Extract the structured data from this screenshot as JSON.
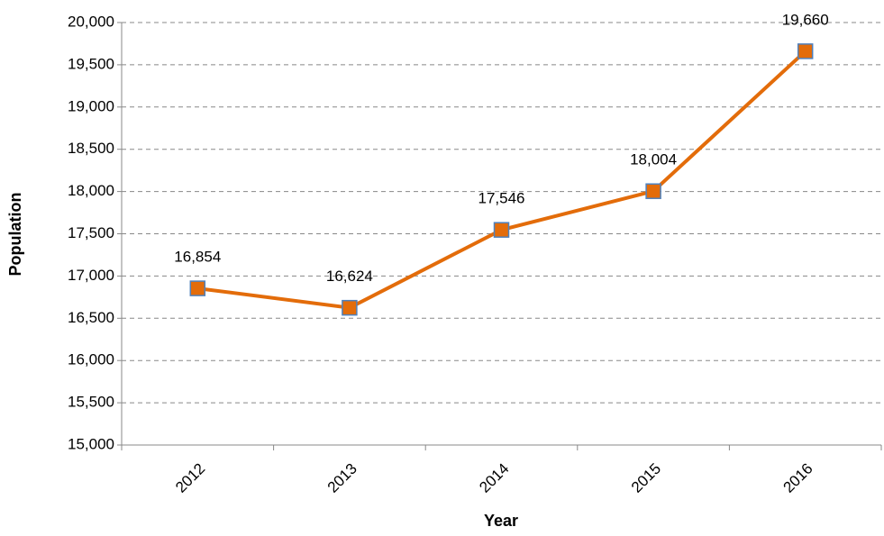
{
  "chart_data": {
    "type": "line",
    "x_label": "Year",
    "y_label": "Population",
    "categories": [
      "2012",
      "2013",
      "2014",
      "2015",
      "2016"
    ],
    "values": [
      16854,
      16624,
      17546,
      18004,
      19660
    ],
    "value_labels": [
      "16,854",
      "16,624",
      "17,546",
      "18,004",
      "19,660"
    ],
    "color": "#e36c0a",
    "marker": "square",
    "marker_edge_color": "#4f81bd",
    "ylim": [
      15000,
      20000
    ],
    "yticks": [
      {
        "value": 15000,
        "label": "15,000"
      },
      {
        "value": 15500,
        "label": "15,500"
      },
      {
        "value": 16000,
        "label": "16,000"
      },
      {
        "value": 16500,
        "label": "16,500"
      },
      {
        "value": 17000,
        "label": "17,000"
      },
      {
        "value": 17500,
        "label": "17,500"
      },
      {
        "value": 18000,
        "label": "18,000"
      },
      {
        "value": 18500,
        "label": "18,500"
      },
      {
        "value": 19000,
        "label": "19,000"
      },
      {
        "value": 19500,
        "label": "19,500"
      },
      {
        "value": 20000,
        "label": "20,000"
      }
    ],
    "grid": true
  }
}
